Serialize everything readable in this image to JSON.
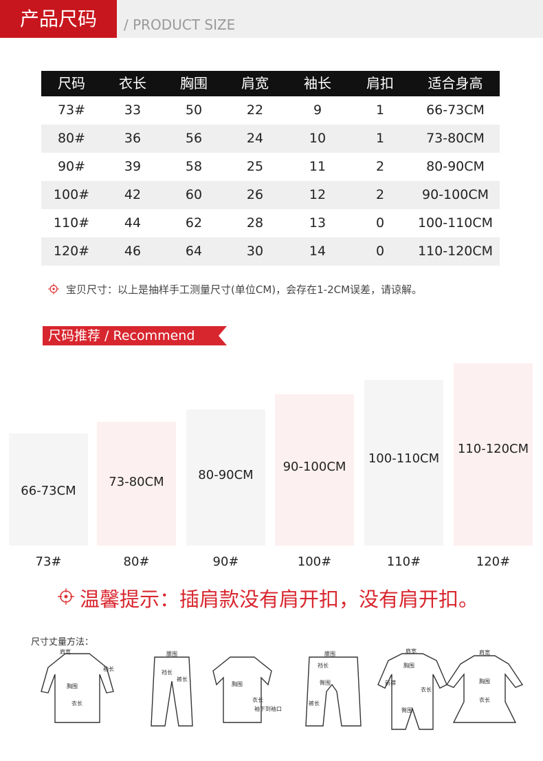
{
  "header": {
    "title": "产品尺码",
    "subtitle": "/ PRODUCT SIZE"
  },
  "table": {
    "columns": [
      "尺码",
      "衣长",
      "胸围",
      "肩宽",
      "袖长",
      "肩扣",
      "适合身高"
    ],
    "rows": [
      [
        "73#",
        "33",
        "50",
        "22",
        "9",
        "1",
        "66-73CM"
      ],
      [
        "80#",
        "36",
        "56",
        "24",
        "10",
        "1",
        "73-80CM"
      ],
      [
        "90#",
        "39",
        "58",
        "25",
        "11",
        "2",
        "80-90CM"
      ],
      [
        "100#",
        "42",
        "60",
        "26",
        "12",
        "2",
        "90-100CM"
      ],
      [
        "110#",
        "44",
        "62",
        "28",
        "13",
        "0",
        "100-110CM"
      ],
      [
        "120#",
        "46",
        "64",
        "30",
        "14",
        "0",
        "110-120CM"
      ]
    ]
  },
  "note": "宝贝尺寸：以上是抽样手工测量尺寸(单位CM)，会存在1-2CM误差，请谅解。",
  "recommend": {
    "title": "尺码推荐 / Recommend",
    "items": [
      {
        "height": "66-73CM",
        "size": "73#"
      },
      {
        "height": "73-80CM",
        "size": "80#"
      },
      {
        "height": "80-90CM",
        "size": "90#"
      },
      {
        "height": "90-100CM",
        "size": "100#"
      },
      {
        "height": "100-110CM",
        "size": "110#"
      },
      {
        "height": "110-120CM",
        "size": "120#"
      }
    ]
  },
  "tip": "温馨提示：插肩款没有肩开扣，没有肩开扣。",
  "measure": {
    "title": "尺寸丈量方法：",
    "figures": [
      {
        "labels": [
          "肩宽",
          "袖长",
          "胸围",
          "衣长"
        ]
      },
      {
        "labels": [
          "腰围",
          "裤长",
          "裆长"
        ]
      },
      {
        "labels": [
          "胸围",
          "衣长",
          "袖下到袖口"
        ]
      },
      {
        "labels": [
          "腰围",
          "裆长",
          "臀围",
          "裤长"
        ]
      },
      {
        "labels": [
          "肩宽",
          "胸围",
          "衣长",
          "前襟",
          "臀围"
        ]
      },
      {
        "labels": [
          "肩宽",
          "胸围",
          "衣长"
        ]
      }
    ]
  }
}
